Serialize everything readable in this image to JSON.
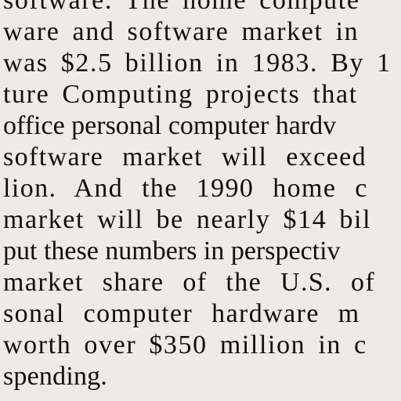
{
  "article": {
    "lines": [
      "software. The home compute",
      "ware and software market in",
      "was $2.5 billion in 1983. By 1",
      "ture Computing projects that",
      "office personal computer hardv",
      "software market will exceed",
      "lion. And the 1990 home c",
      "market will be nearly $14 bil",
      "put these numbers in perspectiv",
      "market share of the U.S. of",
      "sonal computer hardware m",
      "worth over $350 million in c",
      "spending."
    ]
  }
}
